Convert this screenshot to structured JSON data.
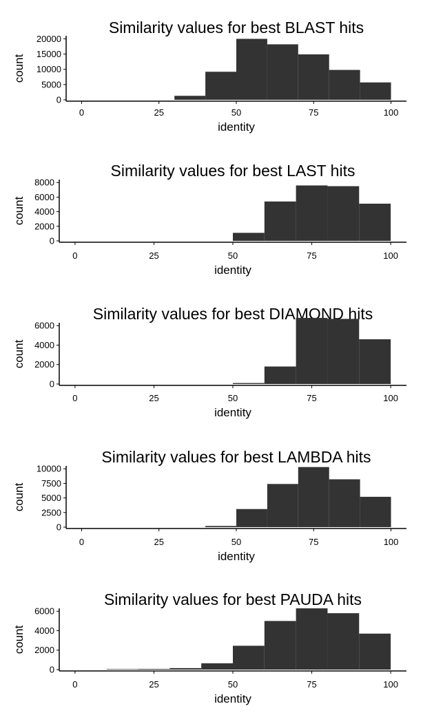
{
  "chart_data": [
    {
      "type": "bar",
      "title": "Similarity values for best BLAST hits",
      "xlabel": "identity",
      "ylabel": "count",
      "xlim": [
        0,
        100
      ],
      "ylim": [
        0,
        20000
      ],
      "grid": false,
      "x_ticks": [
        "0",
        "25",
        "50",
        "75",
        "100"
      ],
      "y_ticks": [
        "0",
        "5000",
        "10000",
        "15000",
        "20000"
      ],
      "bins": [
        [
          0,
          10
        ],
        [
          10,
          20
        ],
        [
          20,
          30
        ],
        [
          30,
          40
        ],
        [
          40,
          50
        ],
        [
          50,
          60
        ],
        [
          60,
          70
        ],
        [
          70,
          80
        ],
        [
          80,
          90
        ],
        [
          90,
          100
        ]
      ],
      "values": [
        0,
        0,
        0,
        1300,
        9200,
        20000,
        18200,
        14900,
        9800,
        5700
      ]
    },
    {
      "type": "bar",
      "title": "Similarity values for best LAST hits",
      "xlabel": "identity",
      "ylabel": "count",
      "xlim": [
        0,
        100
      ],
      "ylim": [
        0,
        8000
      ],
      "grid": false,
      "x_ticks": [
        "0",
        "25",
        "50",
        "75",
        "100"
      ],
      "y_ticks": [
        "0",
        "2000",
        "4000",
        "6000",
        "8000"
      ],
      "bins": [
        [
          0,
          10
        ],
        [
          10,
          20
        ],
        [
          20,
          30
        ],
        [
          30,
          40
        ],
        [
          40,
          50
        ],
        [
          50,
          60
        ],
        [
          60,
          70
        ],
        [
          70,
          80
        ],
        [
          80,
          90
        ],
        [
          90,
          100
        ]
      ],
      "values": [
        0,
        0,
        0,
        0,
        0,
        1100,
        5400,
        7600,
        7500,
        5100
      ]
    },
    {
      "type": "bar",
      "title": "Similarity values for best DIAMOND hits",
      "xlabel": "identity",
      "ylabel": "count",
      "xlim": [
        0,
        100
      ],
      "ylim": [
        0,
        6000
      ],
      "grid": false,
      "x_ticks": [
        "0",
        "25",
        "50",
        "75",
        "100"
      ],
      "y_ticks": [
        "0",
        "2000",
        "4000",
        "6000"
      ],
      "bins": [
        [
          0,
          10
        ],
        [
          10,
          20
        ],
        [
          20,
          30
        ],
        [
          30,
          40
        ],
        [
          40,
          50
        ],
        [
          50,
          60
        ],
        [
          60,
          70
        ],
        [
          70,
          80
        ],
        [
          80,
          90
        ],
        [
          90,
          100
        ]
      ],
      "values": [
        0,
        0,
        0,
        0,
        0,
        100,
        1800,
        6800,
        6700,
        4600
      ]
    },
    {
      "type": "bar",
      "title": "Similarity values for best LAMBDA hits",
      "xlabel": "identity",
      "ylabel": "count",
      "xlim": [
        0,
        100
      ],
      "ylim": [
        0,
        10000
      ],
      "grid": false,
      "x_ticks": [
        "0",
        "25",
        "50",
        "75",
        "100"
      ],
      "y_ticks": [
        "0",
        "2500",
        "5000",
        "7500",
        "10000"
      ],
      "bins": [
        [
          0,
          10
        ],
        [
          10,
          20
        ],
        [
          20,
          30
        ],
        [
          30,
          40
        ],
        [
          40,
          50
        ],
        [
          50,
          60
        ],
        [
          60,
          70
        ],
        [
          70,
          80
        ],
        [
          80,
          90
        ],
        [
          90,
          100
        ]
      ],
      "values": [
        0,
        0,
        0,
        0,
        200,
        3100,
        7400,
        10300,
        8200,
        5200
      ]
    },
    {
      "type": "bar",
      "title": "Similarity values for best PAUDA hits",
      "xlabel": "identity",
      "ylabel": "count",
      "xlim": [
        0,
        100
      ],
      "ylim": [
        0,
        6000
      ],
      "grid": false,
      "x_ticks": [
        "0",
        "25",
        "50",
        "75",
        "100"
      ],
      "y_ticks": [
        "0",
        "2000",
        "4000",
        "6000"
      ],
      "bins": [
        [
          0,
          10
        ],
        [
          10,
          20
        ],
        [
          20,
          30
        ],
        [
          30,
          40
        ],
        [
          40,
          50
        ],
        [
          50,
          60
        ],
        [
          60,
          70
        ],
        [
          70,
          80
        ],
        [
          80,
          90
        ],
        [
          90,
          100
        ]
      ],
      "values": [
        0,
        50,
        70,
        150,
        650,
        2450,
        5000,
        6300,
        5800,
        3700
      ]
    }
  ],
  "colors": {
    "bar_fill": "#333333",
    "axis": "#000000",
    "background": "#ffffff"
  }
}
